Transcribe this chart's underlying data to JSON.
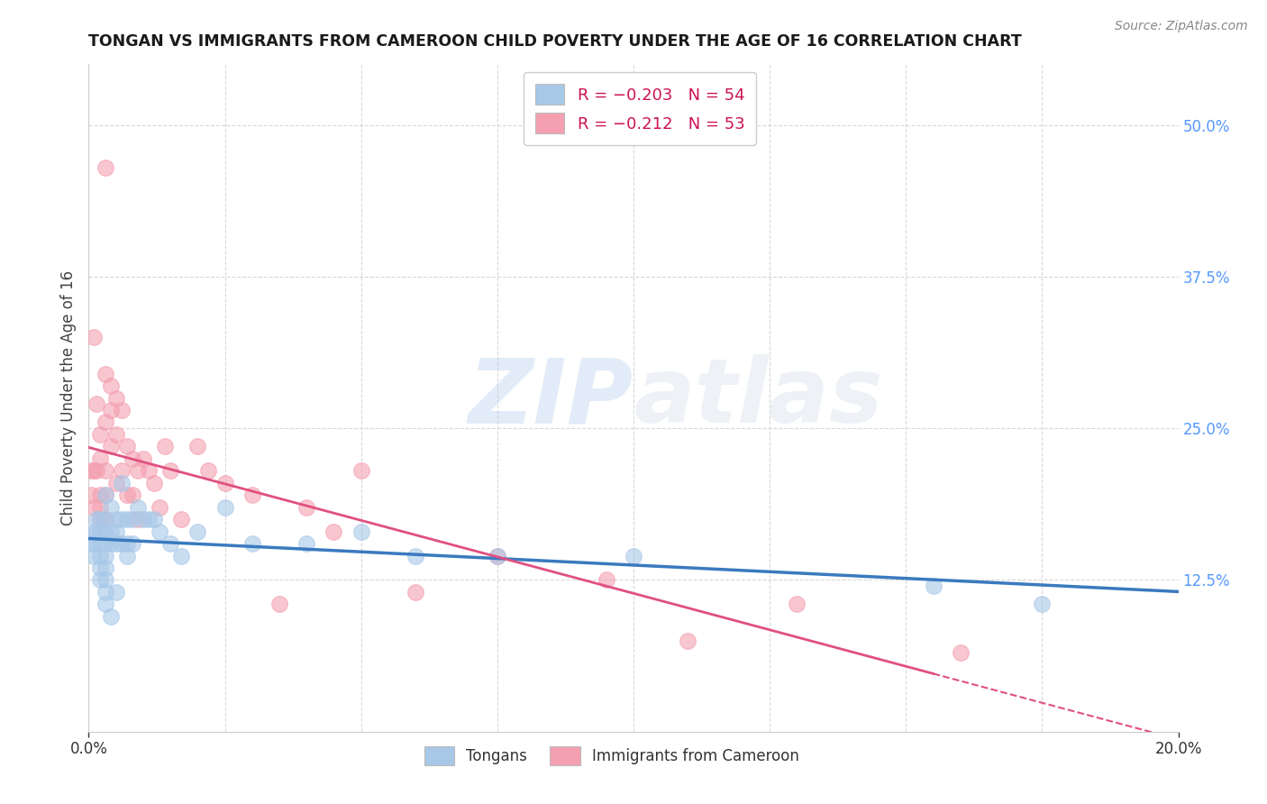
{
  "title": "TONGAN VS IMMIGRANTS FROM CAMEROON CHILD POVERTY UNDER THE AGE OF 16 CORRELATION CHART",
  "source": "Source: ZipAtlas.com",
  "xlabel": "",
  "ylabel": "Child Poverty Under the Age of 16",
  "xlim": [
    0.0,
    0.2
  ],
  "ylim": [
    0.0,
    0.55
  ],
  "xticks": [
    0.0,
    0.2
  ],
  "xtick_labels": [
    "0.0%",
    "20.0%"
  ],
  "xticks_minor": [
    0.025,
    0.05,
    0.075,
    0.1,
    0.125,
    0.15,
    0.175
  ],
  "yticks_right": [
    0.125,
    0.25,
    0.375,
    0.5
  ],
  "ytick_right_labels": [
    "12.5%",
    "25.0%",
    "37.5%",
    "50.0%"
  ],
  "legend_labels": [
    "Tongans",
    "Immigrants from Cameroon"
  ],
  "legend_r": [
    -0.203,
    -0.212
  ],
  "legend_n": [
    54,
    53
  ],
  "blue_color": "#a8c8e8",
  "pink_color": "#f4a0b0",
  "blue_line_color": "#3a7abf",
  "pink_line_color": "#e05080",
  "watermark_zip": "ZIP",
  "watermark_atlas": "atlas",
  "grid_color": "#d8d8d8",
  "background_color": "#ffffff",
  "blue_x": [
    0.0005,
    0.001,
    0.001,
    0.001,
    0.0015,
    0.0015,
    0.002,
    0.002,
    0.002,
    0.002,
    0.002,
    0.002,
    0.003,
    0.003,
    0.003,
    0.003,
    0.003,
    0.003,
    0.003,
    0.003,
    0.003,
    0.004,
    0.004,
    0.004,
    0.004,
    0.005,
    0.005,
    0.005,
    0.005,
    0.006,
    0.006,
    0.006,
    0.007,
    0.007,
    0.007,
    0.008,
    0.008,
    0.009,
    0.01,
    0.011,
    0.012,
    0.013,
    0.015,
    0.017,
    0.02,
    0.025,
    0.03,
    0.04,
    0.05,
    0.06,
    0.075,
    0.1,
    0.155,
    0.175
  ],
  "blue_y": [
    0.155,
    0.165,
    0.155,
    0.145,
    0.175,
    0.165,
    0.175,
    0.165,
    0.155,
    0.145,
    0.135,
    0.125,
    0.195,
    0.175,
    0.165,
    0.155,
    0.145,
    0.135,
    0.125,
    0.115,
    0.105,
    0.185,
    0.165,
    0.155,
    0.095,
    0.175,
    0.165,
    0.155,
    0.115,
    0.205,
    0.175,
    0.155,
    0.175,
    0.155,
    0.145,
    0.175,
    0.155,
    0.185,
    0.175,
    0.175,
    0.175,
    0.165,
    0.155,
    0.145,
    0.165,
    0.185,
    0.155,
    0.155,
    0.165,
    0.145,
    0.145,
    0.145,
    0.12,
    0.105
  ],
  "pink_x": [
    0.0005,
    0.0005,
    0.001,
    0.001,
    0.001,
    0.0015,
    0.0015,
    0.002,
    0.002,
    0.002,
    0.002,
    0.002,
    0.003,
    0.003,
    0.003,
    0.003,
    0.003,
    0.003,
    0.004,
    0.004,
    0.004,
    0.005,
    0.005,
    0.005,
    0.006,
    0.006,
    0.007,
    0.007,
    0.008,
    0.008,
    0.009,
    0.009,
    0.01,
    0.011,
    0.012,
    0.013,
    0.014,
    0.015,
    0.017,
    0.02,
    0.022,
    0.025,
    0.03,
    0.035,
    0.04,
    0.045,
    0.05,
    0.06,
    0.075,
    0.095,
    0.11,
    0.13,
    0.16
  ],
  "pink_y": [
    0.215,
    0.195,
    0.325,
    0.215,
    0.185,
    0.27,
    0.215,
    0.245,
    0.225,
    0.195,
    0.185,
    0.175,
    0.465,
    0.295,
    0.255,
    0.215,
    0.195,
    0.175,
    0.285,
    0.265,
    0.235,
    0.275,
    0.245,
    0.205,
    0.265,
    0.215,
    0.235,
    0.195,
    0.225,
    0.195,
    0.215,
    0.175,
    0.225,
    0.215,
    0.205,
    0.185,
    0.235,
    0.215,
    0.175,
    0.235,
    0.215,
    0.205,
    0.195,
    0.105,
    0.185,
    0.165,
    0.215,
    0.115,
    0.145,
    0.125,
    0.075,
    0.105,
    0.065
  ]
}
